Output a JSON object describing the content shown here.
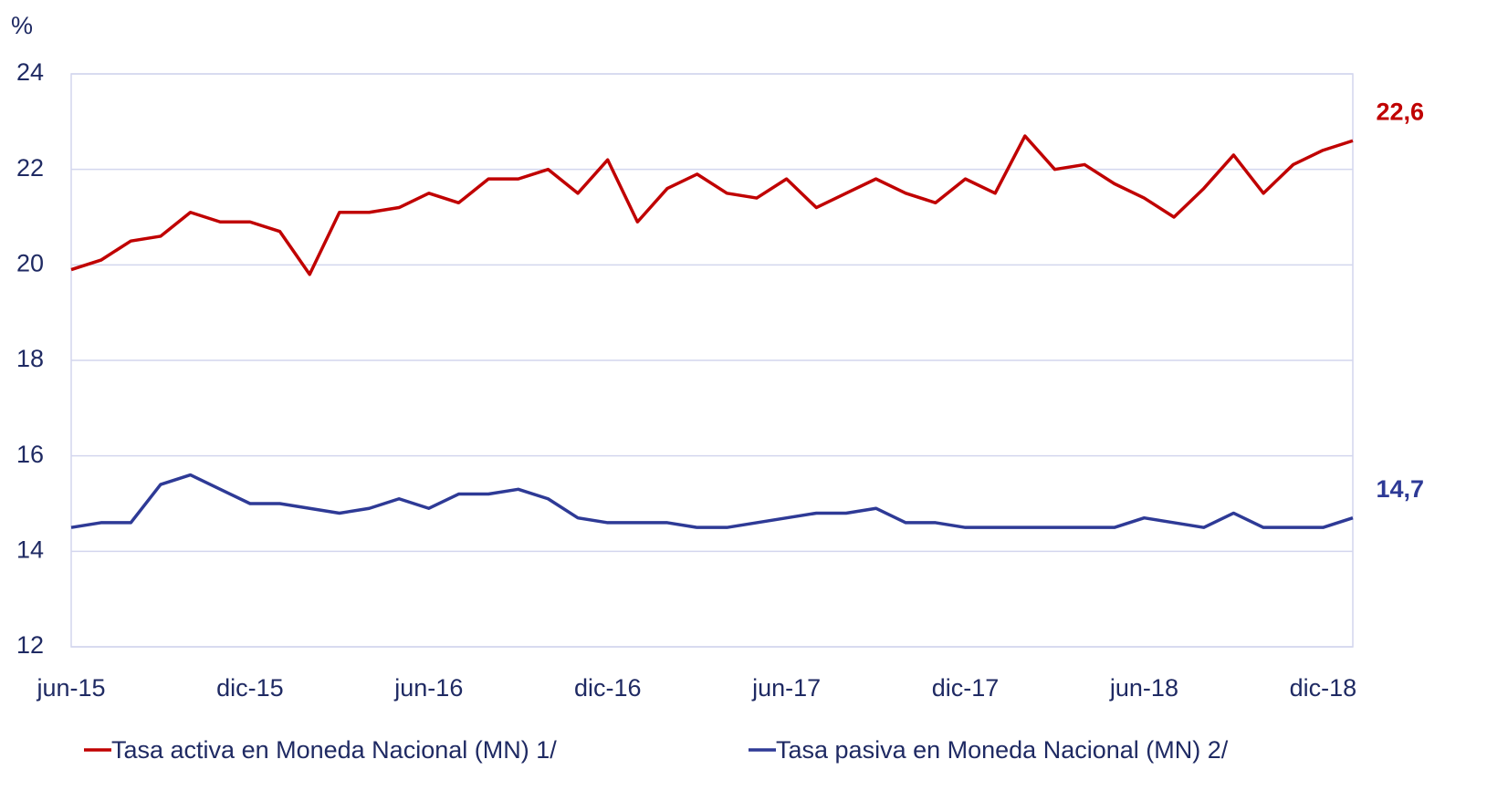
{
  "chart_data": {
    "type": "line",
    "y_axis_label": "%",
    "categories": [
      "jun-15",
      null,
      null,
      null,
      null,
      null,
      "dic-15",
      null,
      null,
      null,
      null,
      null,
      "jun-16",
      null,
      null,
      null,
      null,
      null,
      "dic-16",
      null,
      null,
      null,
      null,
      null,
      "jun-17",
      null,
      null,
      null,
      null,
      null,
      "dic-17",
      null,
      null,
      null,
      null,
      null,
      "jun-18",
      null,
      null,
      null,
      null,
      null,
      "dic-18",
      null
    ],
    "series": [
      {
        "name": "Tasa activa en Moneda Nacional (MN) 1/",
        "color": "#c00000",
        "values": [
          19.9,
          20.1,
          20.5,
          20.6,
          21.1,
          20.9,
          20.9,
          20.7,
          19.8,
          21.1,
          21.1,
          21.2,
          21.5,
          21.3,
          21.8,
          21.8,
          22.0,
          21.5,
          22.2,
          20.9,
          21.6,
          21.9,
          21.5,
          21.4,
          21.8,
          21.2,
          21.5,
          21.8,
          21.5,
          21.3,
          21.8,
          21.5,
          22.7,
          22.0,
          22.1,
          21.7,
          21.4,
          21.0,
          21.6,
          22.3,
          21.5,
          22.1,
          22.4,
          22.6
        ],
        "value_labels": [
          null,
          null,
          null,
          null,
          null,
          null,
          null,
          null,
          null,
          null,
          null,
          null,
          null,
          null,
          null,
          null,
          null,
          null,
          null,
          null,
          null,
          null,
          null,
          null,
          null,
          null,
          null,
          null,
          null,
          null,
          null,
          null,
          null,
          null,
          null,
          null,
          null,
          null,
          null,
          null,
          null,
          null,
          null,
          "22,6"
        ]
      },
      {
        "name": "Tasa pasiva en Moneda Nacional (MN) 2/",
        "color": "#2e3a96",
        "values": [
          14.5,
          14.6,
          14.6,
          15.4,
          15.6,
          15.3,
          15.0,
          15.0,
          14.9,
          14.8,
          14.9,
          15.1,
          14.9,
          15.2,
          15.2,
          15.3,
          15.1,
          14.7,
          14.6,
          14.6,
          14.6,
          14.5,
          14.5,
          14.6,
          14.7,
          14.8,
          14.8,
          14.9,
          14.6,
          14.6,
          14.5,
          14.5,
          14.5,
          14.5,
          14.5,
          14.5,
          14.7,
          14.6,
          14.5,
          14.8,
          14.5,
          14.5,
          14.5,
          14.7
        ],
        "value_labels": [
          null,
          null,
          null,
          null,
          null,
          null,
          null,
          null,
          null,
          null,
          null,
          null,
          null,
          null,
          null,
          null,
          null,
          null,
          null,
          null,
          null,
          null,
          null,
          null,
          null,
          null,
          null,
          null,
          null,
          null,
          null,
          null,
          null,
          null,
          null,
          null,
          null,
          null,
          null,
          null,
          null,
          null,
          null,
          "14,7"
        ]
      }
    ],
    "ylim": [
      12,
      24
    ],
    "yticks": [
      12,
      14,
      16,
      18,
      20,
      22,
      24
    ],
    "grid": true,
    "legend": "bottom"
  }
}
